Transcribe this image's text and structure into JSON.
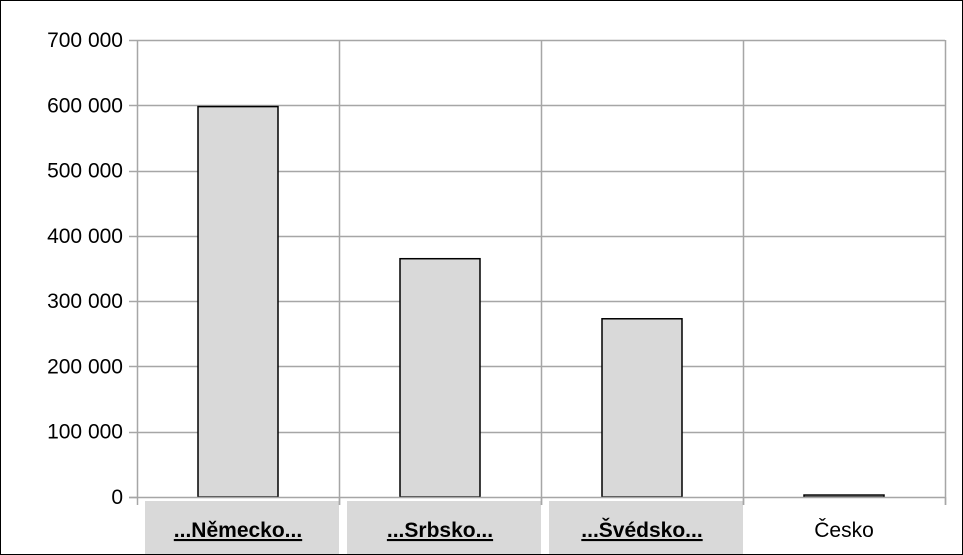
{
  "chart_data": {
    "type": "bar",
    "categories": [
      "...Německo...",
      "...Srbsko...",
      "...Švédsko...",
      "Česko"
    ],
    "values": [
      598000,
      365000,
      273000,
      3000
    ],
    "highlighted": [
      true,
      true,
      true,
      false
    ],
    "ylim": [
      0,
      700000
    ],
    "yticks": [
      0,
      100000,
      200000,
      300000,
      400000,
      500000,
      600000,
      700000
    ],
    "ytick_labels": [
      "0",
      "100 000",
      "200 000",
      "300 000",
      "400 000",
      "500 000",
      "600 000",
      "700 000"
    ],
    "grid": true,
    "title": "",
    "xlabel": "",
    "ylabel": "",
    "colors": {
      "bar_fill": "#d9d9d9",
      "bar_stroke": "#000000",
      "grid": "#a6a6a6",
      "highlight_bg": "#d9d9d9"
    }
  }
}
